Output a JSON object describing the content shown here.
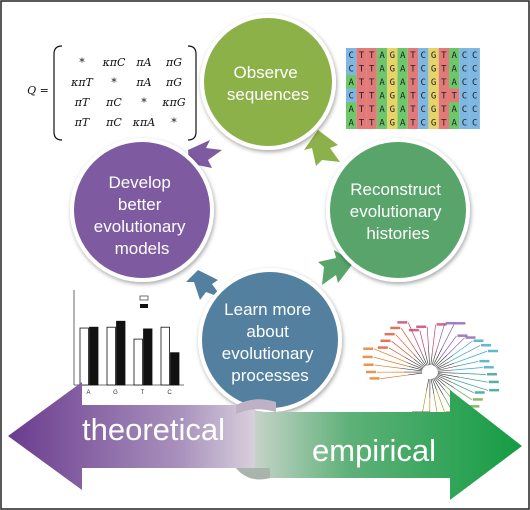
{
  "circles": {
    "observe": {
      "lines": [
        "Observe",
        "sequences"
      ],
      "color": "#8db14a"
    },
    "reconstruct": {
      "lines": [
        "Reconstruct",
        "evolutionary",
        "histories"
      ],
      "color": "#58a46a"
    },
    "learn": {
      "lines": [
        "Learn more",
        "about",
        "evolutionary",
        "processes"
      ],
      "color": "#53809f"
    },
    "develop": {
      "lines": [
        "Develop",
        "better",
        "evolutionary",
        "models"
      ],
      "color": "#7e5aa0"
    }
  },
  "arrows": {
    "theoretical": {
      "label": "theoretical",
      "color": "#7a4a9c"
    },
    "empirical": {
      "label": "empirical",
      "color": "#1fa24f"
    }
  },
  "matrix": {
    "lhs": "Q =",
    "rows": [
      [
        "*",
        "κπC",
        "πA",
        "πG"
      ],
      [
        "κπT",
        "*",
        "πA",
        "πG"
      ],
      [
        "πT",
        "πC",
        "*",
        "κπG"
      ],
      [
        "πT",
        "πC",
        "κπA",
        "*"
      ]
    ]
  },
  "alignment": {
    "rows": [
      "CTTAGATCGTACC",
      "CTTAGATCGTACC",
      "ATTAGATCGTACC",
      "CTTAGATCGTTCC",
      "ATTAGATCGTACC",
      "ATTAGATCGTACC"
    ],
    "colors": {
      "A": "#6ec86b",
      "C": "#7fb7e3",
      "G": "#e6d36a",
      "T": "#e37a7a"
    }
  },
  "bar_chart": {
    "categories": [
      "A",
      "G",
      "T",
      "C"
    ],
    "series": [
      {
        "name": "",
        "values": [
          0.67,
          0.68,
          0.54,
          0.68
        ]
      },
      {
        "name": "",
        "values": [
          0.68,
          0.75,
          0.66,
          0.38
        ]
      }
    ],
    "ylim": [
      0,
      1.0
    ]
  }
}
